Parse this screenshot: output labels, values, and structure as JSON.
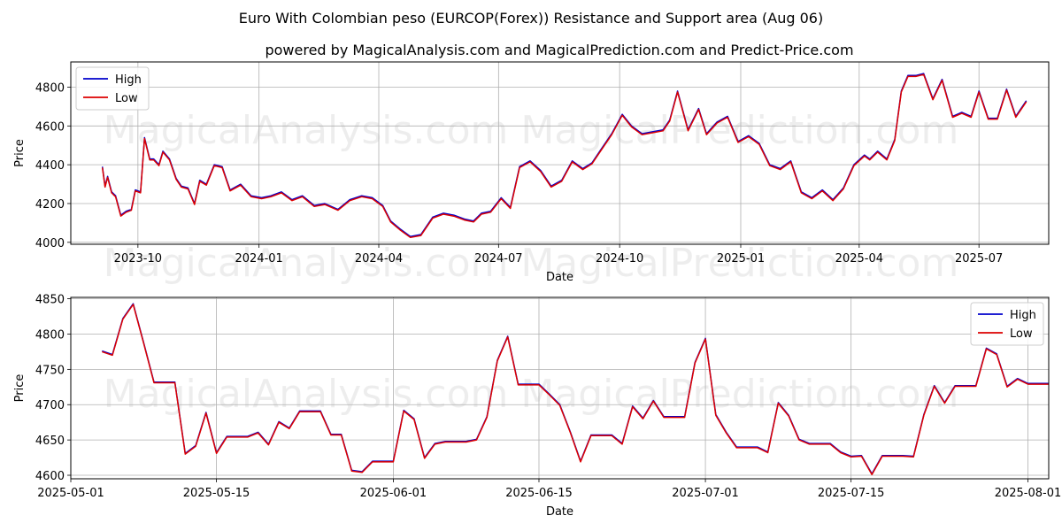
{
  "colors": {
    "high": "#0000cc",
    "low": "#dd0000",
    "grid": "#b0b0b0"
  },
  "chart_data": [
    {
      "type": "line",
      "title": "Euro With Colombian peso (EURCOP(Forex)) Resistance and Support area (Aug 06)",
      "subtitle": "powered by MagicalAnalysis.com and MagicalPrediction.com and Predict-Price.com",
      "watermark": "MagicalAnalysis.com    MagicalPrediction.com",
      "xlabel": "Date",
      "ylabel": "Price",
      "legend": "top-left",
      "grid": true,
      "xlim": [
        "2023-08-11",
        "2025-08-23"
      ],
      "ylim": [
        3990,
        4930
      ],
      "xticks": [
        "2023-10-01",
        "2024-01-01",
        "2024-04-01",
        "2024-07-01",
        "2024-10-01",
        "2025-01-01",
        "2025-04-01",
        "2025-07-01"
      ],
      "xtick_labels": [
        "2023-10",
        "2024-01",
        "2024-04",
        "2024-07",
        "2024-10",
        "2025-01",
        "2025-04",
        "2025-07"
      ],
      "yticks": [
        4000,
        4200,
        4400,
        4600,
        4800
      ],
      "series": [
        {
          "name": "High",
          "color": "#0000cc",
          "x": [
            "2023-09-04",
            "2023-09-06",
            "2023-09-08",
            "2023-09-11",
            "2023-09-14",
            "2023-09-18",
            "2023-09-22",
            "2023-09-26",
            "2023-09-29",
            "2023-10-03",
            "2023-10-06",
            "2023-10-10",
            "2023-10-13",
            "2023-10-17",
            "2023-10-20",
            "2023-10-25",
            "2023-10-30",
            "2023-11-03",
            "2023-11-08",
            "2023-11-13",
            "2023-11-17",
            "2023-11-22",
            "2023-11-28",
            "2023-12-04",
            "2023-12-10",
            "2023-12-18",
            "2023-12-26",
            "2024-01-03",
            "2024-01-10",
            "2024-01-18",
            "2024-01-26",
            "2024-02-03",
            "2024-02-12",
            "2024-02-20",
            "2024-03-01",
            "2024-03-10",
            "2024-03-19",
            "2024-03-27",
            "2024-04-04",
            "2024-04-10",
            "2024-04-17",
            "2024-04-25",
            "2024-05-03",
            "2024-05-12",
            "2024-05-20",
            "2024-05-28",
            "2024-06-05",
            "2024-06-12",
            "2024-06-18",
            "2024-06-25",
            "2024-07-03",
            "2024-07-10",
            "2024-07-17",
            "2024-07-25",
            "2024-08-02",
            "2024-08-10",
            "2024-08-18",
            "2024-08-26",
            "2024-09-03",
            "2024-09-10",
            "2024-09-17",
            "2024-09-25",
            "2024-10-03",
            "2024-10-10",
            "2024-10-18",
            "2024-10-26",
            "2024-11-03",
            "2024-11-08",
            "2024-11-14",
            "2024-11-22",
            "2024-11-30",
            "2024-12-06",
            "2024-12-14",
            "2024-12-22",
            "2024-12-30",
            "2025-01-07",
            "2025-01-15",
            "2025-01-23",
            "2025-01-31",
            "2025-02-08",
            "2025-02-16",
            "2025-02-24",
            "2025-03-04",
            "2025-03-12",
            "2025-03-20",
            "2025-03-28",
            "2025-04-05",
            "2025-04-09",
            "2025-04-15",
            "2025-04-22",
            "2025-04-28",
            "2025-05-03",
            "2025-05-08",
            "2025-05-14",
            "2025-05-20",
            "2025-05-27",
            "2025-06-03",
            "2025-06-11",
            "2025-06-18",
            "2025-06-25",
            "2025-07-01",
            "2025-07-08",
            "2025-07-15",
            "2025-07-22",
            "2025-07-29",
            "2025-08-06"
          ],
          "values": [
            4390,
            4290,
            4340,
            4260,
            4240,
            4140,
            4160,
            4170,
            4270,
            4260,
            4540,
            4430,
            4430,
            4400,
            4470,
            4430,
            4330,
            4290,
            4280,
            4200,
            4320,
            4300,
            4400,
            4390,
            4270,
            4300,
            4240,
            4230,
            4240,
            4260,
            4220,
            4240,
            4190,
            4200,
            4170,
            4220,
            4240,
            4230,
            4190,
            4110,
            4070,
            4030,
            4040,
            4130,
            4150,
            4140,
            4120,
            4110,
            4150,
            4160,
            4230,
            4180,
            4390,
            4420,
            4370,
            4290,
            4320,
            4420,
            4380,
            4410,
            4480,
            4560,
            4660,
            4600,
            4560,
            4570,
            4580,
            4630,
            4780,
            4580,
            4690,
            4560,
            4620,
            4650,
            4520,
            4550,
            4510,
            4400,
            4380,
            4420,
            4260,
            4230,
            4270,
            4220,
            4280,
            4400,
            4450,
            4430,
            4470,
            4430,
            4530,
            4780,
            4860,
            4860,
            4870,
            4740,
            4840,
            4650,
            4670,
            4650,
            4780,
            4640,
            4640,
            4790,
            4650,
            4730
          ]
        },
        {
          "name": "Low",
          "color": "#dd0000",
          "x": [
            "2023-09-04",
            "2023-09-06",
            "2023-09-08",
            "2023-09-11",
            "2023-09-14",
            "2023-09-18",
            "2023-09-22",
            "2023-09-26",
            "2023-09-29",
            "2023-10-03",
            "2023-10-06",
            "2023-10-10",
            "2023-10-13",
            "2023-10-17",
            "2023-10-20",
            "2023-10-25",
            "2023-10-30",
            "2023-11-03",
            "2023-11-08",
            "2023-11-13",
            "2023-11-17",
            "2023-11-22",
            "2023-11-28",
            "2023-12-04",
            "2023-12-10",
            "2023-12-18",
            "2023-12-26",
            "2024-01-03",
            "2024-01-10",
            "2024-01-18",
            "2024-01-26",
            "2024-02-03",
            "2024-02-12",
            "2024-02-20",
            "2024-03-01",
            "2024-03-10",
            "2024-03-19",
            "2024-03-27",
            "2024-04-04",
            "2024-04-10",
            "2024-04-17",
            "2024-04-25",
            "2024-05-03",
            "2024-05-12",
            "2024-05-20",
            "2024-05-28",
            "2024-06-05",
            "2024-06-12",
            "2024-06-18",
            "2024-06-25",
            "2024-07-03",
            "2024-07-10",
            "2024-07-17",
            "2024-07-25",
            "2024-08-02",
            "2024-08-10",
            "2024-08-18",
            "2024-08-26",
            "2024-09-03",
            "2024-09-10",
            "2024-09-17",
            "2024-09-25",
            "2024-10-03",
            "2024-10-10",
            "2024-10-18",
            "2024-10-26",
            "2024-11-03",
            "2024-11-08",
            "2024-11-14",
            "2024-11-22",
            "2024-11-30",
            "2024-12-06",
            "2024-12-14",
            "2024-12-22",
            "2024-12-30",
            "2025-01-07",
            "2025-01-15",
            "2025-01-23",
            "2025-01-31",
            "2025-02-08",
            "2025-02-16",
            "2025-02-24",
            "2025-03-04",
            "2025-03-12",
            "2025-03-20",
            "2025-03-28",
            "2025-04-05",
            "2025-04-09",
            "2025-04-15",
            "2025-04-22",
            "2025-04-28",
            "2025-05-03",
            "2025-05-08",
            "2025-05-14",
            "2025-05-20",
            "2025-05-27",
            "2025-06-03",
            "2025-06-11",
            "2025-06-18",
            "2025-06-25",
            "2025-07-01",
            "2025-07-08",
            "2025-07-15",
            "2025-07-22",
            "2025-07-29",
            "2025-08-06"
          ],
          "values": [
            4385,
            4285,
            4335,
            4255,
            4235,
            4135,
            4155,
            4165,
            4265,
            4255,
            4535,
            4425,
            4425,
            4395,
            4465,
            4425,
            4325,
            4285,
            4275,
            4195,
            4315,
            4295,
            4395,
            4385,
            4265,
            4295,
            4235,
            4225,
            4235,
            4255,
            4215,
            4235,
            4185,
            4195,
            4165,
            4215,
            4235,
            4225,
            4185,
            4105,
            4065,
            4025,
            4035,
            4125,
            4145,
            4135,
            4115,
            4105,
            4145,
            4155,
            4225,
            4175,
            4385,
            4415,
            4365,
            4285,
            4315,
            4415,
            4375,
            4405,
            4475,
            4555,
            4655,
            4595,
            4555,
            4565,
            4575,
            4625,
            4775,
            4575,
            4685,
            4555,
            4615,
            4645,
            4515,
            4545,
            4505,
            4395,
            4375,
            4415,
            4255,
            4225,
            4265,
            4215,
            4275,
            4395,
            4445,
            4425,
            4465,
            4425,
            4525,
            4775,
            4855,
            4855,
            4865,
            4735,
            4835,
            4645,
            4665,
            4645,
            4775,
            4635,
            4635,
            4785,
            4645,
            4725
          ]
        }
      ]
    },
    {
      "type": "line",
      "xlabel": "Date",
      "ylabel": "Price",
      "legend": "top-right",
      "grid": true,
      "xlim": [
        "2025-05-01",
        "2025-08-03"
      ],
      "ylim": [
        4595,
        4852
      ],
      "xticks": [
        "2025-05-01",
        "2025-05-15",
        "2025-06-01",
        "2025-06-15",
        "2025-07-01",
        "2025-07-15",
        "2025-08-01"
      ],
      "xtick_labels": [
        "2025-05-01",
        "2025-05-15",
        "2025-06-01",
        "2025-06-15",
        "2025-07-01",
        "2025-07-15",
        "2025-08-01"
      ],
      "yticks": [
        4600,
        4650,
        4700,
        4750,
        4800,
        4850
      ],
      "series": [
        {
          "name": "High",
          "color": "#0000cc",
          "x": [
            "2025-05-04",
            "2025-05-05",
            "2025-05-06",
            "2025-05-07",
            "2025-05-08",
            "2025-05-09",
            "2025-05-10",
            "2025-05-11",
            "2025-05-12",
            "2025-05-13",
            "2025-05-14",
            "2025-05-15",
            "2025-05-16",
            "2025-05-17",
            "2025-05-18",
            "2025-05-19",
            "2025-05-20",
            "2025-05-21",
            "2025-05-22",
            "2025-05-23",
            "2025-05-24",
            "2025-05-25",
            "2025-05-26",
            "2025-05-27",
            "2025-05-28",
            "2025-05-29",
            "2025-05-30",
            "2025-05-31",
            "2025-06-01",
            "2025-06-02",
            "2025-06-03",
            "2025-06-04",
            "2025-06-05",
            "2025-06-06",
            "2025-06-07",
            "2025-06-08",
            "2025-06-09",
            "2025-06-10",
            "2025-06-11",
            "2025-06-12",
            "2025-06-13",
            "2025-06-14",
            "2025-06-15",
            "2025-06-16",
            "2025-06-17",
            "2025-06-18",
            "2025-06-19",
            "2025-06-20",
            "2025-06-21",
            "2025-06-22",
            "2025-06-23",
            "2025-06-24",
            "2025-06-25",
            "2025-06-26",
            "2025-06-27",
            "2025-06-28",
            "2025-06-29",
            "2025-06-30",
            "2025-07-01",
            "2025-07-02",
            "2025-07-03",
            "2025-07-04",
            "2025-07-05",
            "2025-07-06",
            "2025-07-07",
            "2025-07-08",
            "2025-07-09",
            "2025-07-10",
            "2025-07-11",
            "2025-07-12",
            "2025-07-13",
            "2025-07-14",
            "2025-07-15",
            "2025-07-16",
            "2025-07-17",
            "2025-07-18",
            "2025-07-19",
            "2025-07-20",
            "2025-07-21",
            "2025-07-22",
            "2025-07-23",
            "2025-07-24",
            "2025-07-25",
            "2025-07-26",
            "2025-07-27",
            "2025-07-28",
            "2025-07-29",
            "2025-07-30",
            "2025-07-31",
            "2025-08-01",
            "2025-08-02",
            "2025-08-03"
          ],
          "values": [
            4776,
            4771,
            4822,
            4843,
            4788,
            4732,
            4732,
            4732,
            4631,
            4642,
            4689,
            4632,
            4655,
            4655,
            4655,
            4661,
            4644,
            4676,
            4667,
            4691,
            4691,
            4691,
            4658,
            4658,
            4607,
            4605,
            4620,
            4620,
            4620,
            4692,
            4680,
            4625,
            4645,
            4648,
            4648,
            4648,
            4651,
            4683,
            4763,
            4797,
            4729,
            4729,
            4729,
            4715,
            4700,
            4662,
            4620,
            4657,
            4657,
            4657,
            4645,
            4698,
            4681,
            4706,
            4683,
            4683,
            4683,
            4760,
            4794,
            4686,
            4661,
            4640,
            4640,
            4640,
            4633,
            4703,
            4685,
            4651,
            4645,
            4645,
            4645,
            4633,
            4627,
            4628,
            4602,
            4628,
            4628,
            4628,
            4627,
            4686,
            4727,
            4703,
            4727,
            4727,
            4727,
            4780,
            4772,
            4726,
            4737,
            4730,
            4730,
            4730
          ]
        },
        {
          "name": "Low",
          "color": "#dd0000",
          "x": [
            "2025-05-04",
            "2025-05-05",
            "2025-05-06",
            "2025-05-07",
            "2025-05-08",
            "2025-05-09",
            "2025-05-10",
            "2025-05-11",
            "2025-05-12",
            "2025-05-13",
            "2025-05-14",
            "2025-05-15",
            "2025-05-16",
            "2025-05-17",
            "2025-05-18",
            "2025-05-19",
            "2025-05-20",
            "2025-05-21",
            "2025-05-22",
            "2025-05-23",
            "2025-05-24",
            "2025-05-25",
            "2025-05-26",
            "2025-05-27",
            "2025-05-28",
            "2025-05-29",
            "2025-05-30",
            "2025-05-31",
            "2025-06-01",
            "2025-06-02",
            "2025-06-03",
            "2025-06-04",
            "2025-06-05",
            "2025-06-06",
            "2025-06-07",
            "2025-06-08",
            "2025-06-09",
            "2025-06-10",
            "2025-06-11",
            "2025-06-12",
            "2025-06-13",
            "2025-06-14",
            "2025-06-15",
            "2025-06-16",
            "2025-06-17",
            "2025-06-18",
            "2025-06-19",
            "2025-06-20",
            "2025-06-21",
            "2025-06-22",
            "2025-06-23",
            "2025-06-24",
            "2025-06-25",
            "2025-06-26",
            "2025-06-27",
            "2025-06-28",
            "2025-06-29",
            "2025-06-30",
            "2025-07-01",
            "2025-07-02",
            "2025-07-03",
            "2025-07-04",
            "2025-07-05",
            "2025-07-06",
            "2025-07-07",
            "2025-07-08",
            "2025-07-09",
            "2025-07-10",
            "2025-07-11",
            "2025-07-12",
            "2025-07-13",
            "2025-07-14",
            "2025-07-15",
            "2025-07-16",
            "2025-07-17",
            "2025-07-18",
            "2025-07-19",
            "2025-07-20",
            "2025-07-21",
            "2025-07-22",
            "2025-07-23",
            "2025-07-24",
            "2025-07-25",
            "2025-07-26",
            "2025-07-27",
            "2025-07-28",
            "2025-07-29",
            "2025-07-30",
            "2025-07-31",
            "2025-08-01",
            "2025-08-02",
            "2025-08-03"
          ],
          "values": [
            4775,
            4770,
            4821,
            4842,
            4787,
            4731,
            4731,
            4731,
            4630,
            4641,
            4688,
            4631,
            4654,
            4654,
            4654,
            4660,
            4643,
            4675,
            4666,
            4690,
            4690,
            4690,
            4657,
            4657,
            4606,
            4604,
            4619,
            4619,
            4619,
            4691,
            4679,
            4624,
            4644,
            4647,
            4647,
            4647,
            4650,
            4682,
            4762,
            4796,
            4728,
            4728,
            4728,
            4714,
            4699,
            4661,
            4619,
            4656,
            4656,
            4656,
            4644,
            4697,
            4680,
            4705,
            4682,
            4682,
            4682,
            4759,
            4793,
            4685,
            4660,
            4639,
            4639,
            4639,
            4632,
            4702,
            4684,
            4650,
            4644,
            4644,
            4644,
            4632,
            4626,
            4627,
            4601,
            4627,
            4627,
            4627,
            4626,
            4685,
            4726,
            4702,
            4726,
            4726,
            4726,
            4779,
            4771,
            4725,
            4736,
            4729,
            4729,
            4729
          ]
        }
      ]
    }
  ]
}
